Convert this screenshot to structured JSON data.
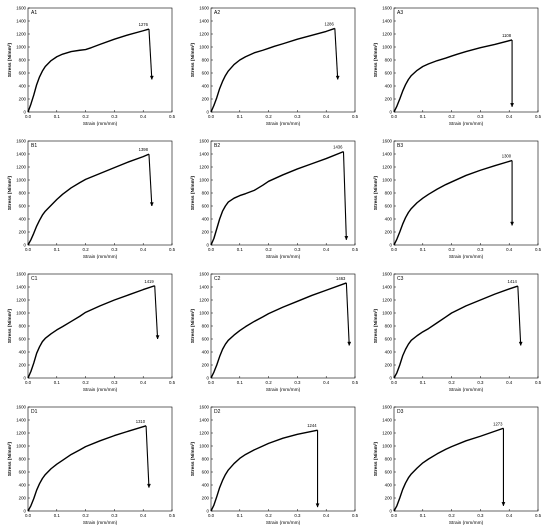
{
  "chart_data": [
    {
      "type": "line",
      "panel_label": "A1",
      "xlabel": "Strain (mm/mm)",
      "ylabel": "Stress (N/mm²)",
      "xlim": [
        0,
        0.5
      ],
      "ylim": [
        0,
        1600
      ],
      "grid": false,
      "xticks": [
        "0.0",
        "0.1",
        "0.2",
        "0.3",
        "0.4",
        "0.5"
      ],
      "yticks": [
        "0",
        "200",
        "400",
        "600",
        "800",
        "1000",
        "1200",
        "1400",
        "1600"
      ],
      "peak_label": "1276",
      "peak": [
        0.42,
        1276
      ],
      "fracture_end": [
        0.43,
        500
      ],
      "x": [
        0,
        0.01,
        0.02,
        0.03,
        0.04,
        0.05,
        0.06,
        0.08,
        0.1,
        0.12,
        0.15,
        0.18,
        0.2,
        0.22,
        0.25,
        0.3,
        0.35,
        0.4,
        0.42
      ],
      "y": [
        0,
        120,
        260,
        420,
        540,
        630,
        700,
        790,
        850,
        890,
        930,
        950,
        960,
        990,
        1040,
        1120,
        1190,
        1250,
        1276
      ]
    },
    {
      "type": "line",
      "panel_label": "A2",
      "xlabel": "Strain (mm/mm)",
      "ylabel": "Stress (N/mm²)",
      "xlim": [
        0,
        0.5
      ],
      "ylim": [
        0,
        1600
      ],
      "grid": false,
      "xticks": [
        "0.0",
        "0.1",
        "0.2",
        "0.3",
        "0.4",
        "0.5"
      ],
      "yticks": [
        "0",
        "200",
        "400",
        "600",
        "800",
        "1000",
        "1200",
        "1400",
        "1600"
      ],
      "peak_label": "1286",
      "peak": [
        0.43,
        1286
      ],
      "fracture_end": [
        0.44,
        500
      ],
      "x": [
        0,
        0.01,
        0.02,
        0.03,
        0.04,
        0.05,
        0.06,
        0.08,
        0.1,
        0.12,
        0.15,
        0.18,
        0.2,
        0.22,
        0.25,
        0.3,
        0.35,
        0.4,
        0.43
      ],
      "y": [
        0,
        100,
        220,
        360,
        470,
        560,
        630,
        730,
        800,
        850,
        910,
        950,
        980,
        1010,
        1050,
        1120,
        1180,
        1240,
        1286
      ]
    },
    {
      "type": "line",
      "panel_label": "A3",
      "xlabel": "Strain (mm/mm)",
      "ylabel": "Stress (N/mm²)",
      "xlim": [
        0,
        0.5
      ],
      "ylim": [
        0,
        1600
      ],
      "grid": false,
      "xticks": [
        "0.0",
        "0.1",
        "0.2",
        "0.3",
        "0.4",
        "0.5"
      ],
      "yticks": [
        "0",
        "200",
        "400",
        "600",
        "800",
        "1000",
        "1200",
        "1400",
        "1600"
      ],
      "peak_label": "1108",
      "peak": [
        0.41,
        1108
      ],
      "fracture_end": [
        0.41,
        80
      ],
      "x": [
        0,
        0.01,
        0.02,
        0.03,
        0.04,
        0.05,
        0.06,
        0.08,
        0.1,
        0.12,
        0.15,
        0.18,
        0.2,
        0.22,
        0.25,
        0.3,
        0.35,
        0.41
      ],
      "y": [
        0,
        90,
        200,
        320,
        420,
        500,
        560,
        640,
        700,
        740,
        790,
        830,
        860,
        890,
        930,
        990,
        1040,
        1108
      ]
    },
    {
      "type": "line",
      "panel_label": "B1",
      "xlabel": "Strain (mm/mm)",
      "ylabel": "Stress (N/mm²)",
      "xlim": [
        0,
        0.5
      ],
      "ylim": [
        0,
        1600
      ],
      "grid": false,
      "xticks": [
        "0.0",
        "0.1",
        "0.2",
        "0.3",
        "0.4",
        "0.5"
      ],
      "yticks": [
        "0",
        "200",
        "400",
        "600",
        "800",
        "1000",
        "1200",
        "1400",
        "1600"
      ],
      "peak_label": "1398",
      "peak": [
        0.42,
        1398
      ],
      "fracture_end": [
        0.43,
        600
      ],
      "x": [
        0,
        0.01,
        0.02,
        0.03,
        0.04,
        0.05,
        0.06,
        0.08,
        0.1,
        0.12,
        0.15,
        0.18,
        0.2,
        0.25,
        0.3,
        0.35,
        0.4,
        0.42
      ],
      "y": [
        0,
        80,
        180,
        290,
        380,
        460,
        520,
        610,
        700,
        780,
        880,
        960,
        1010,
        1100,
        1190,
        1280,
        1360,
        1398
      ]
    },
    {
      "type": "line",
      "panel_label": "B2",
      "xlabel": "Strain (mm/mm)",
      "ylabel": "Stress (N/mm²)",
      "xlim": [
        0,
        0.5
      ],
      "ylim": [
        0,
        1600
      ],
      "grid": false,
      "xticks": [
        "0.0",
        "0.1",
        "0.2",
        "0.3",
        "0.4",
        "0.5"
      ],
      "yticks": [
        "0",
        "200",
        "400",
        "600",
        "800",
        "1000",
        "1200",
        "1400",
        "1600"
      ],
      "peak_label": "1436",
      "peak": [
        0.46,
        1436
      ],
      "fracture_end": [
        0.47,
        80
      ],
      "x": [
        0,
        0.01,
        0.02,
        0.03,
        0.04,
        0.05,
        0.06,
        0.08,
        0.1,
        0.12,
        0.15,
        0.18,
        0.2,
        0.25,
        0.3,
        0.35,
        0.4,
        0.46
      ],
      "y": [
        0,
        100,
        250,
        400,
        520,
        600,
        660,
        720,
        760,
        790,
        840,
        920,
        980,
        1080,
        1170,
        1250,
        1330,
        1436
      ]
    },
    {
      "type": "line",
      "panel_label": "B3",
      "xlabel": "Strain (mm/mm)",
      "ylabel": "Stress (N/mm²)",
      "xlim": [
        0,
        0.5
      ],
      "ylim": [
        0,
        1600
      ],
      "grid": false,
      "xticks": [
        "0.0",
        "0.1",
        "0.2",
        "0.3",
        "0.4",
        "0.5"
      ],
      "yticks": [
        "0",
        "200",
        "400",
        "600",
        "800",
        "1000",
        "1200",
        "1400",
        "1600"
      ],
      "peak_label": "1300",
      "peak": [
        0.41,
        1300
      ],
      "fracture_end": [
        0.41,
        300
      ],
      "x": [
        0,
        0.01,
        0.02,
        0.03,
        0.04,
        0.05,
        0.06,
        0.08,
        0.1,
        0.12,
        0.15,
        0.18,
        0.2,
        0.25,
        0.3,
        0.35,
        0.41
      ],
      "y": [
        0,
        90,
        200,
        320,
        420,
        500,
        560,
        650,
        720,
        780,
        860,
        930,
        970,
        1070,
        1150,
        1220,
        1300
      ]
    },
    {
      "type": "line",
      "panel_label": "C1",
      "xlabel": "Strain (mm/mm)",
      "ylabel": "Stress (N/mm²)",
      "xlim": [
        0,
        0.5
      ],
      "ylim": [
        0,
        1600
      ],
      "grid": false,
      "xticks": [
        "0.0",
        "0.1",
        "0.2",
        "0.3",
        "0.4",
        "0.5"
      ],
      "yticks": [
        "0",
        "200",
        "400",
        "600",
        "800",
        "1000",
        "1200",
        "1400",
        "1600"
      ],
      "peak_label": "1419",
      "peak": [
        0.44,
        1419
      ],
      "fracture_end": [
        0.45,
        600
      ],
      "x": [
        0,
        0.01,
        0.02,
        0.03,
        0.04,
        0.05,
        0.06,
        0.08,
        0.1,
        0.12,
        0.15,
        0.18,
        0.2,
        0.25,
        0.3,
        0.35,
        0.4,
        0.44
      ],
      "y": [
        0,
        100,
        230,
        380,
        480,
        560,
        610,
        680,
        740,
        790,
        870,
        950,
        1010,
        1110,
        1200,
        1280,
        1360,
        1419
      ]
    },
    {
      "type": "line",
      "panel_label": "C2",
      "xlabel": "Strain (mm/mm)",
      "ylabel": "Stress (N/mm²)",
      "xlim": [
        0,
        0.5
      ],
      "ylim": [
        0,
        1600
      ],
      "grid": false,
      "xticks": [
        "0.0",
        "0.1",
        "0.2",
        "0.3",
        "0.4",
        "0.5"
      ],
      "yticks": [
        "0",
        "200",
        "400",
        "600",
        "800",
        "1000",
        "1200",
        "1400",
        "1600"
      ],
      "peak_label": "1463",
      "peak": [
        0.47,
        1463
      ],
      "fracture_end": [
        0.48,
        500
      ],
      "x": [
        0,
        0.01,
        0.02,
        0.03,
        0.04,
        0.05,
        0.06,
        0.08,
        0.1,
        0.12,
        0.15,
        0.18,
        0.2,
        0.25,
        0.3,
        0.35,
        0.4,
        0.47
      ],
      "y": [
        0,
        90,
        200,
        330,
        440,
        520,
        580,
        660,
        730,
        790,
        870,
        940,
        990,
        1090,
        1180,
        1270,
        1350,
        1463
      ]
    },
    {
      "type": "line",
      "panel_label": "C3",
      "xlabel": "Strain (mm/mm)",
      "ylabel": "Stress (N/mm²)",
      "xlim": [
        0,
        0.5
      ],
      "ylim": [
        0,
        1600
      ],
      "grid": false,
      "xticks": [
        "0.0",
        "0.1",
        "0.2",
        "0.3",
        "0.4",
        "0.5"
      ],
      "yticks": [
        "0",
        "200",
        "400",
        "600",
        "800",
        "1000",
        "1200",
        "1400",
        "1600"
      ],
      "peak_label": "1414",
      "peak": [
        0.43,
        1414
      ],
      "fracture_end": [
        0.44,
        500
      ],
      "x": [
        0,
        0.01,
        0.02,
        0.03,
        0.04,
        0.05,
        0.06,
        0.08,
        0.1,
        0.12,
        0.15,
        0.18,
        0.2,
        0.25,
        0.3,
        0.35,
        0.4,
        0.43
      ],
      "y": [
        0,
        80,
        200,
        340,
        440,
        520,
        580,
        650,
        710,
        760,
        850,
        940,
        1000,
        1110,
        1200,
        1290,
        1370,
        1414
      ]
    },
    {
      "type": "line",
      "panel_label": "D1",
      "xlabel": "Strain (mm/mm)",
      "ylabel": "Stress (N/mm²)",
      "xlim": [
        0,
        0.5
      ],
      "ylim": [
        0,
        1600
      ],
      "grid": false,
      "xticks": [
        "0.0",
        "0.1",
        "0.2",
        "0.3",
        "0.4",
        "0.5"
      ],
      "yticks": [
        "0",
        "200",
        "400",
        "600",
        "800",
        "1000",
        "1200",
        "1400",
        "1600"
      ],
      "peak_label": "1310",
      "peak": [
        0.41,
        1310
      ],
      "fracture_end": [
        0.42,
        360
      ],
      "x": [
        0,
        0.01,
        0.02,
        0.03,
        0.04,
        0.05,
        0.06,
        0.08,
        0.1,
        0.12,
        0.15,
        0.18,
        0.2,
        0.25,
        0.3,
        0.35,
        0.41
      ],
      "y": [
        0,
        80,
        190,
        320,
        420,
        500,
        560,
        650,
        720,
        780,
        870,
        940,
        990,
        1080,
        1160,
        1230,
        1310
      ]
    },
    {
      "type": "line",
      "panel_label": "D2",
      "xlabel": "Strain (mm/mm)",
      "ylabel": "Stress (N/mm²)",
      "xlim": [
        0,
        0.5
      ],
      "ylim": [
        0,
        1600
      ],
      "grid": false,
      "xticks": [
        "0.0",
        "0.1",
        "0.2",
        "0.3",
        "0.4",
        "0.5"
      ],
      "yticks": [
        "0",
        "200",
        "400",
        "600",
        "800",
        "1000",
        "1200",
        "1400",
        "1600"
      ],
      "peak_label": "1244",
      "peak": [
        0.37,
        1244
      ],
      "fracture_end": [
        0.37,
        60
      ],
      "x": [
        0,
        0.01,
        0.02,
        0.03,
        0.04,
        0.05,
        0.06,
        0.08,
        0.1,
        0.12,
        0.15,
        0.18,
        0.2,
        0.25,
        0.3,
        0.37
      ],
      "y": [
        0,
        90,
        220,
        360,
        470,
        560,
        630,
        730,
        810,
        870,
        940,
        1000,
        1040,
        1120,
        1180,
        1244
      ]
    },
    {
      "type": "line",
      "panel_label": "D3",
      "xlabel": "Strain (mm/mm)",
      "ylabel": "Stress (N/mm²)",
      "xlim": [
        0,
        0.5
      ],
      "ylim": [
        0,
        1600
      ],
      "grid": false,
      "xticks": [
        "0.0",
        "0.1",
        "0.2",
        "0.3",
        "0.4",
        "0.5"
      ],
      "yticks": [
        "0",
        "200",
        "400",
        "600",
        "800",
        "1000",
        "1200",
        "1400",
        "1600"
      ],
      "peak_label": "1273",
      "peak": [
        0.38,
        1273
      ],
      "fracture_end": [
        0.38,
        80
      ],
      "x": [
        0,
        0.01,
        0.02,
        0.03,
        0.04,
        0.05,
        0.06,
        0.08,
        0.1,
        0.12,
        0.15,
        0.18,
        0.2,
        0.25,
        0.3,
        0.38
      ],
      "y": [
        0,
        80,
        200,
        330,
        430,
        510,
        570,
        660,
        740,
        800,
        880,
        950,
        990,
        1080,
        1150,
        1273
      ]
    }
  ]
}
